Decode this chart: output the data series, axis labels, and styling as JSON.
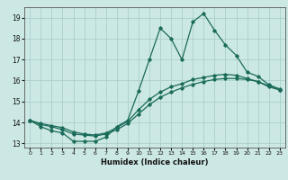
{
  "title": "",
  "xlabel": "Humidex (Indice chaleur)",
  "xlim": [
    -0.5,
    23.5
  ],
  "ylim": [
    12.8,
    19.5
  ],
  "yticks": [
    13,
    14,
    15,
    16,
    17,
    18,
    19
  ],
  "xticks": [
    0,
    1,
    2,
    3,
    4,
    5,
    6,
    7,
    8,
    9,
    10,
    11,
    12,
    13,
    14,
    15,
    16,
    17,
    18,
    19,
    20,
    21,
    22,
    23
  ],
  "bg_color": "#cce8e4",
  "grid_color": "#aacfca",
  "line_color": "#1a6b5a",
  "line1_y": [
    14.1,
    13.8,
    13.6,
    13.5,
    13.1,
    13.1,
    13.1,
    13.3,
    13.8,
    14.1,
    15.5,
    17.0,
    18.5,
    18.0,
    17.0,
    18.8,
    19.2,
    18.4,
    17.7,
    17.2,
    16.4,
    16.2,
    15.8,
    15.6
  ],
  "line2_y": [
    14.1,
    13.9,
    13.8,
    13.65,
    13.45,
    13.4,
    13.35,
    13.45,
    13.65,
    13.95,
    14.4,
    14.85,
    15.2,
    15.45,
    15.65,
    15.82,
    15.95,
    16.05,
    16.1,
    16.1,
    16.05,
    15.95,
    15.75,
    15.55
  ],
  "line3_y": [
    14.1,
    13.95,
    13.85,
    13.75,
    13.55,
    13.45,
    13.4,
    13.5,
    13.75,
    14.05,
    14.6,
    15.1,
    15.45,
    15.7,
    15.85,
    16.05,
    16.15,
    16.25,
    16.3,
    16.25,
    16.1,
    15.95,
    15.7,
    15.55
  ]
}
